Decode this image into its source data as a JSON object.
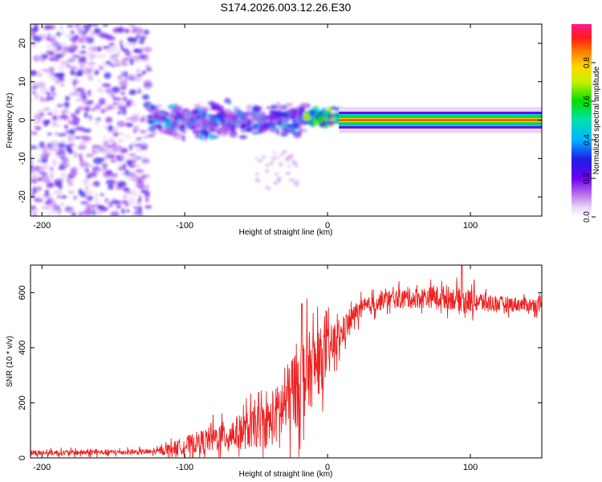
{
  "title": "S174.2026.003.12.26.E30",
  "chart_data": [
    {
      "type": "heatmap",
      "title": "S174.2026.003.12.26.E30",
      "xlabel": "Height of straight line (km)",
      "ylabel": "Frequency (Hz)",
      "xlim": [
        -208,
        150
      ],
      "ylim": [
        -25,
        25
      ],
      "xticks": [
        -200,
        -100,
        0,
        100
      ],
      "yticks": [
        -20,
        -10,
        0,
        10,
        20
      ],
      "colorbar": {
        "label": "Normalized spectral amplitude",
        "range": [
          0,
          1
        ],
        "ticks": [
          0.0,
          0.2,
          0.4,
          0.6,
          0.8
        ],
        "tick_labels": [
          "0.0",
          "0.2",
          "0.4",
          "0.6",
          "0.8"
        ],
        "colormap": "rainbow (violet → blue → cyan → green → yellow → red → magenta)"
      },
      "signal_line": {
        "frequency_hz": 0,
        "x_start": 8,
        "x_end": 150,
        "amplitude": 0.95
      },
      "bands": [
        {
          "x_from": -208,
          "x_to": -125,
          "f_spread_hz": 25,
          "amplitude_range": [
            0.05,
            0.3
          ]
        },
        {
          "x_from": -125,
          "x_to": -15,
          "f_center_hz": 0,
          "f_spread_hz": 6,
          "amplitude_range": [
            0.1,
            0.45
          ]
        },
        {
          "x_from": -15,
          "x_to": 8,
          "f_center_hz": 0.5,
          "f_spread_hz": 3,
          "amplitude_range": [
            0.3,
            0.9
          ]
        }
      ]
    },
    {
      "type": "line",
      "xlabel": "Height of straight line (km)",
      "ylabel": "SNR (10 * v/v)",
      "xlim": [
        -208,
        150
      ],
      "ylim": [
        0,
        700
      ],
      "xticks": [
        -200,
        -100,
        0,
        100
      ],
      "yticks": [
        0,
        200,
        400,
        600
      ],
      "series": [
        {
          "name": "SNR",
          "color": "#ee2222",
          "baseline_x": [
            -208,
            -120,
            -100,
            -80,
            -60,
            -40,
            -30,
            -20,
            -10,
            0,
            10,
            20,
            40,
            60,
            80,
            100,
            120,
            150
          ],
          "baseline_y": [
            18,
            22,
            45,
            70,
            95,
            130,
            190,
            280,
            330,
            380,
            450,
            530,
            575,
            580,
            585,
            570,
            560,
            555
          ],
          "noise_y": [
            12,
            12,
            40,
            60,
            80,
            110,
            160,
            200,
            170,
            120,
            60,
            45,
            40,
            45,
            50,
            55,
            35,
            30
          ],
          "peaks": [
            {
              "x": 94,
              "y": 700
            },
            {
              "x": -18,
              "y": 560
            },
            {
              "x": 13,
              "y": 520
            }
          ]
        }
      ]
    }
  ]
}
